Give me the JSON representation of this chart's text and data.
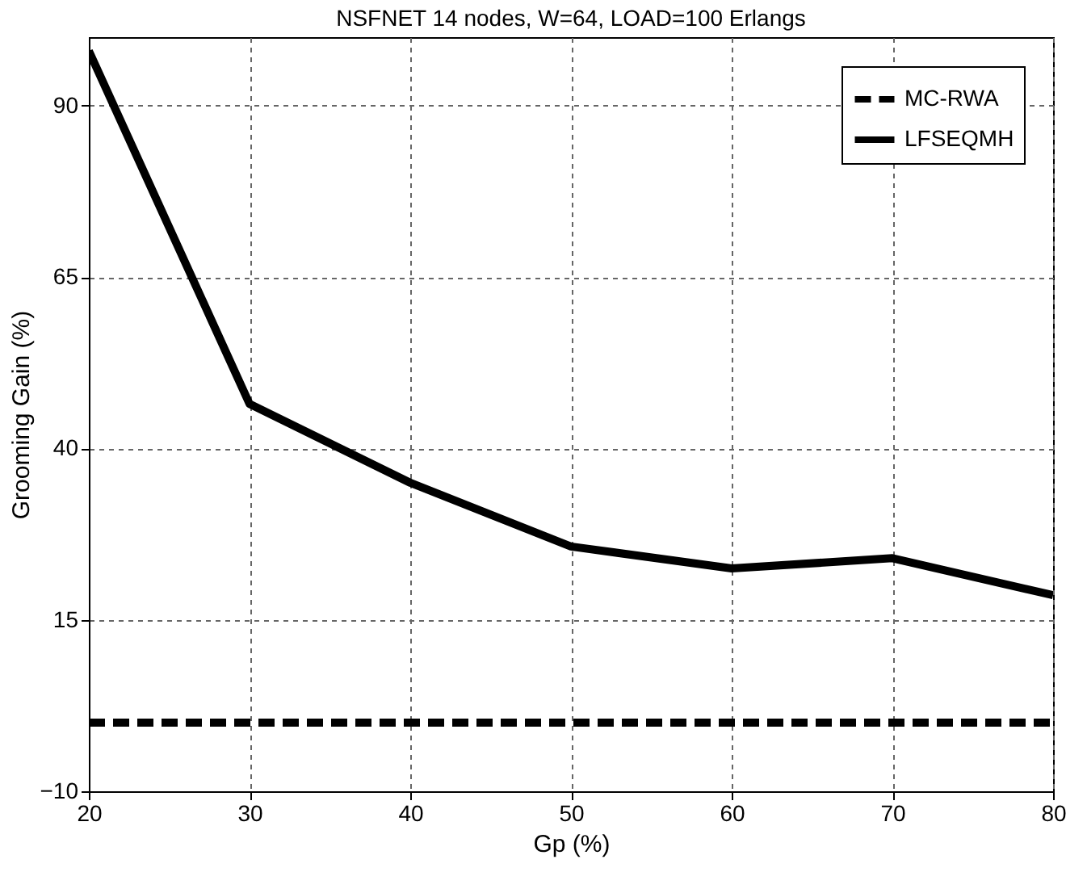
{
  "chart_data": {
    "type": "line",
    "title": "NSFNET 14 nodes, W=64, LOAD=100 Erlangs",
    "xlabel": "Gp (%)",
    "ylabel": "Grooming Gain (%)",
    "x": [
      20,
      30,
      40,
      50,
      60,
      70,
      80
    ],
    "series": [
      {
        "name": "MC-RWA",
        "color": "#000000",
        "line_style": "dashed",
        "values": [
          0,
          0,
          0,
          0,
          0,
          0,
          0
        ]
      },
      {
        "name": "LFSEQMH",
        "color": "#000000",
        "line_style": "solid",
        "values": [
          98,
          46.5,
          35,
          25.7,
          22.5,
          24,
          18.6
        ]
      }
    ],
    "xlim": [
      20,
      80
    ],
    "xticks": [
      20,
      30,
      40,
      50,
      60,
      70,
      80
    ],
    "ylim": [
      -10,
      100
    ],
    "yticks": [
      -10,
      15,
      40,
      65,
      90
    ],
    "grid": true,
    "legend": "top right"
  }
}
